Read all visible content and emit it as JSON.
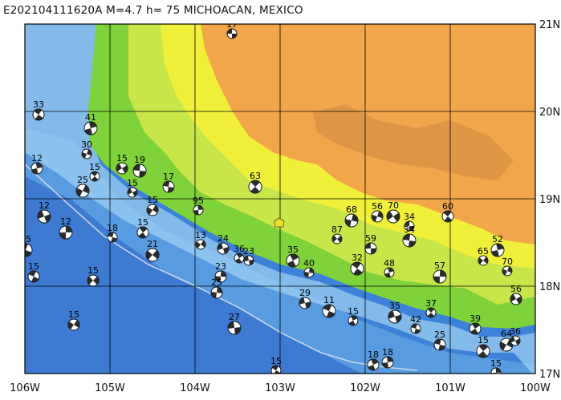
{
  "title": "E202104111620A  M=4.7  h= 75  MICHOACAN, MEXICO",
  "colors": {
    "deep_ocean": "#2d64c8",
    "mid_ocean": "#3d82d8",
    "shelf": "#6fb0ea",
    "coast_water": "#a9d8f4",
    "lowland": "#7fd23a",
    "hills": "#c8e64a",
    "uplands": "#f0f03a",
    "plateau": "#f2a64a",
    "high": "#d89244",
    "grid": "#000000",
    "trench": "#c8d6e8",
    "epicenter": "#f0e020"
  },
  "axes": {
    "lon_labels": [
      "106W",
      "105W",
      "104W",
      "103W",
      "102W",
      "101W",
      "100W"
    ],
    "lat_labels": [
      "21N",
      "20N",
      "19N",
      "18N",
      "17N"
    ]
  },
  "events": [
    {
      "m": "17"
    },
    {
      "m": "33"
    },
    {
      "m": "41"
    },
    {
      "m": "30"
    },
    {
      "m": "15"
    },
    {
      "m": "19"
    },
    {
      "m": "15"
    },
    {
      "m": "12"
    },
    {
      "m": "25"
    },
    {
      "m": "15"
    },
    {
      "m": "17"
    },
    {
      "m": "63"
    },
    {
      "m": "95"
    },
    {
      "m": "15"
    },
    {
      "m": "12"
    },
    {
      "m": "18"
    },
    {
      "m": "15"
    },
    {
      "m": "12"
    },
    {
      "m": "13"
    },
    {
      "m": "24"
    },
    {
      "m": "15"
    },
    {
      "m": "36"
    },
    {
      "m": "23"
    },
    {
      "m": "21"
    },
    {
      "m": "23"
    },
    {
      "m": "15"
    },
    {
      "m": "35"
    },
    {
      "m": "40"
    },
    {
      "m": "15"
    },
    {
      "m": "27"
    },
    {
      "m": "15"
    },
    {
      "m": "18"
    },
    {
      "m": "68"
    },
    {
      "m": "87"
    },
    {
      "m": "59"
    },
    {
      "m": "32"
    },
    {
      "m": "48"
    },
    {
      "m": "56"
    },
    {
      "m": "70"
    },
    {
      "m": "34"
    },
    {
      "m": "60"
    },
    {
      "m": "52"
    },
    {
      "m": "70"
    },
    {
      "m": "56"
    },
    {
      "m": "34"
    },
    {
      "m": "37"
    },
    {
      "m": "18"
    },
    {
      "m": "64"
    },
    {
      "m": "36"
    },
    {
      "m": "25"
    },
    {
      "m": "15"
    },
    {
      "m": "15"
    },
    {
      "m": "15"
    },
    {
      "m": "35"
    },
    {
      "m": "42"
    },
    {
      "m": "39"
    },
    {
      "m": "57"
    },
    {
      "m": "65"
    },
    {
      "m": "29"
    },
    {
      "m": "11"
    },
    {
      "m": "15"
    },
    {
      "m": "25"
    }
  ]
}
